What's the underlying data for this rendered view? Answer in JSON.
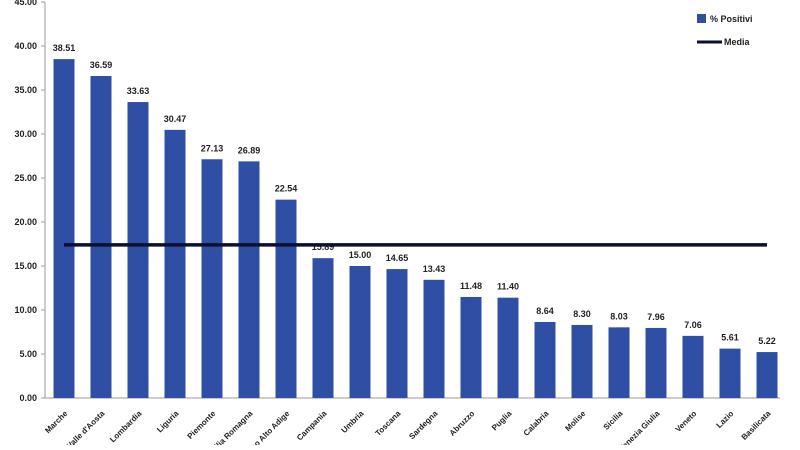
{
  "chart_data": {
    "type": "bar",
    "categories": [
      "Marche",
      "Valle d'Aosta",
      "Lombardia",
      "Liguria",
      "Piemonte",
      "Emilia Romagna",
      "Trentino Alto Adige",
      "Campania",
      "Umbria",
      "Toscana",
      "Sardegna",
      "Abruzzo",
      "Puglia",
      "Calabria",
      "Molise",
      "Sicilia",
      "Friuli Venezia Giulia",
      "Veneto",
      "Lazio",
      "Basilicata"
    ],
    "series": [
      {
        "name": "% Positivi",
        "color": "#2e4fa3",
        "values": [
          38.51,
          36.59,
          33.63,
          30.47,
          27.13,
          26.89,
          22.54,
          15.89,
          15.0,
          14.65,
          13.43,
          11.48,
          11.4,
          8.64,
          8.3,
          8.03,
          7.96,
          7.06,
          5.61,
          5.22
        ]
      },
      {
        "name": "Media",
        "type": "line",
        "color": "#0b1033",
        "value": 17.4
      }
    ],
    "data_labels": [
      "38.51",
      "36.59",
      "33.63",
      "30.47",
      "27.13",
      "26.89",
      "22.54",
      "15.89",
      "15.00",
      "14.65",
      "13.43",
      "11.48",
      "11.40",
      "8.64",
      "8.30",
      "8.03",
      "7.96",
      "7.06",
      "5.61",
      "5.22"
    ],
    "yticks": [
      "0.00",
      "5.00",
      "10.00",
      "15.00",
      "20.00",
      "25.00",
      "30.00",
      "35.00",
      "40.00",
      "45.00"
    ],
    "ylim": [
      0,
      45
    ],
    "title": "",
    "xlabel": "",
    "ylabel": "",
    "grid": false,
    "legend_position": "top-right"
  }
}
